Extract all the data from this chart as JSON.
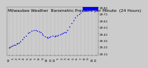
{
  "title": "Milwaukee Weather  Barometric Pressure per Minute  (24 Hours)",
  "bg_color": "#cccccc",
  "plot_bg": "#cccccc",
  "dot_color": "#0000ff",
  "highlight_color": "#0000ff",
  "ylim": [
    29.08,
    29.82
  ],
  "xlim": [
    -0.5,
    23.5
  ],
  "yticks": [
    29.11,
    29.21,
    29.31,
    29.41,
    29.51,
    29.61,
    29.71,
    29.81
  ],
  "ytick_labels": [
    "29.11",
    "29.21",
    "29.31",
    "29.41",
    "29.51",
    "29.61",
    "29.71",
    "29.81"
  ],
  "xtick_positions": [
    0,
    1,
    2,
    3,
    4,
    5,
    6,
    7,
    8,
    9,
    10,
    11,
    12,
    13,
    14,
    15,
    16,
    17,
    18,
    19,
    20,
    21,
    22,
    23
  ],
  "xtick_labels": [
    "12",
    "1",
    "2",
    "3",
    "4",
    "5",
    "6",
    "7",
    "8",
    "9",
    "10",
    "11",
    "12",
    "1",
    "2",
    "3",
    "4",
    "5",
    "6",
    "7",
    "8",
    "9",
    "10",
    "11"
  ],
  "data_x": [
    0,
    0.3,
    0.7,
    1.0,
    1.3,
    1.7,
    2.0,
    2.3,
    2.7,
    3.0,
    3.5,
    4.0,
    4.5,
    5.0,
    5.5,
    6.0,
    6.5,
    7.0,
    7.5,
    8.0,
    8.3,
    8.7,
    9.0,
    9.5,
    10.0,
    10.3,
    10.7,
    11.0,
    11.5,
    12.0,
    12.3,
    12.7,
    13.0,
    13.5,
    14.0,
    14.3,
    14.7,
    15.0,
    15.5,
    16.0,
    16.5,
    17.0,
    17.5,
    18.0,
    18.5,
    19.0,
    19.5,
    20.0,
    20.5,
    21.0,
    21.5,
    22.0,
    22.5,
    23.0
  ],
  "data_y": [
    29.2,
    29.21,
    29.22,
    29.23,
    29.24,
    29.24,
    29.26,
    29.27,
    29.28,
    29.3,
    29.33,
    29.36,
    29.38,
    29.42,
    29.44,
    29.46,
    29.47,
    29.47,
    29.46,
    29.45,
    29.43,
    29.41,
    29.39,
    29.37,
    29.36,
    29.35,
    29.36,
    29.37,
    29.38,
    29.37,
    29.38,
    29.38,
    29.39,
    29.4,
    29.41,
    29.42,
    29.43,
    29.44,
    29.47,
    29.52,
    29.57,
    29.62,
    29.66,
    29.69,
    29.71,
    29.73,
    29.75,
    29.76,
    29.77,
    29.78,
    29.79,
    29.8,
    29.8,
    29.8
  ],
  "title_fontsize": 4.2,
  "tick_fontsize": 3.2,
  "dot_size": 1.2,
  "grid_color": "#aaaaaa",
  "highlight_xmin": 0.855,
  "highlight_xmax": 1.0,
  "highlight_y": 29.795,
  "highlight_lw": 4.5
}
